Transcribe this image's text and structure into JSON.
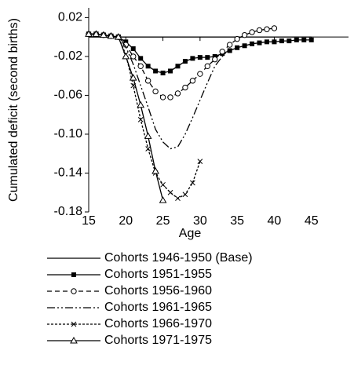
{
  "chart_data": {
    "type": "line",
    "xlabel": "Age",
    "ylabel": "Cumulated deficit (second births)",
    "x": [
      15,
      16,
      17,
      18,
      19,
      20,
      21,
      22,
      23,
      24,
      25,
      26,
      27,
      28,
      29,
      30,
      31,
      32,
      33,
      34,
      35,
      36,
      37,
      38,
      39,
      40,
      41,
      42,
      43,
      44,
      45
    ],
    "xlim": [
      15,
      50
    ],
    "xticks": [
      15,
      20,
      25,
      30,
      35,
      40,
      45
    ],
    "ylim": [
      -0.18,
      0.03
    ],
    "yticks": [
      0.02,
      -0.02,
      -0.06,
      {
        "value": -0.1,
        "label": "-0.10"
      },
      -0.14,
      -0.18
    ],
    "series": [
      {
        "name": "Cohorts 1946-1950 (Base)",
        "color": "#000000",
        "marker": "none",
        "dash": "none",
        "values": [
          0,
          0,
          0,
          0,
          0,
          0,
          0,
          0,
          0,
          0,
          0,
          0,
          0,
          0,
          0,
          0,
          0,
          0,
          0,
          0,
          0,
          0,
          0,
          0,
          0,
          0,
          0,
          0,
          0,
          0,
          0
        ]
      },
      {
        "name": "Cohorts 1951-1955",
        "color": "#000000",
        "marker": "square",
        "dash": "none",
        "values": [
          0.003,
          0.003,
          0.002,
          0.001,
          0,
          -0.005,
          -0.012,
          -0.022,
          -0.03,
          -0.035,
          -0.037,
          -0.035,
          -0.03,
          -0.025,
          -0.022,
          -0.021,
          -0.021,
          -0.02,
          -0.017,
          -0.014,
          -0.011,
          -0.009,
          -0.007,
          -0.006,
          -0.005,
          -0.005,
          -0.004,
          -0.004,
          -0.003,
          -0.003,
          -0.003
        ]
      },
      {
        "name": "Cohorts 1956-1960",
        "color": "#000000",
        "marker": "circle",
        "dash": "6,4",
        "values": [
          0.003,
          0.003,
          0.002,
          0.001,
          0,
          -0.008,
          -0.02,
          -0.03,
          -0.045,
          -0.056,
          -0.062,
          -0.062,
          -0.058,
          -0.052,
          -0.045,
          -0.038,
          -0.03,
          -0.023,
          -0.015,
          -0.008,
          -0.002,
          0.002,
          0.005,
          0.007,
          0.008,
          0.009,
          null,
          null,
          null,
          null,
          null
        ]
      },
      {
        "name": "Cohorts 1961-1965",
        "color": "#000000",
        "marker": "none",
        "dash": "10,3,2,3,2,3",
        "values": [
          0.003,
          0.003,
          0.002,
          0.001,
          0,
          -0.01,
          -0.028,
          -0.05,
          -0.072,
          -0.095,
          -0.108,
          -0.115,
          -0.113,
          -0.1,
          -0.083,
          -0.065,
          -0.047,
          -0.03,
          -0.02,
          -0.012,
          null,
          null,
          null,
          null,
          null,
          null,
          null,
          null,
          null,
          null,
          null
        ]
      },
      {
        "name": "Cohorts 1966-1970",
        "color": "#000000",
        "marker": "x",
        "dash": "3,2",
        "values": [
          0.003,
          0.003,
          0.002,
          0.001,
          0,
          -0.018,
          -0.05,
          -0.085,
          -0.115,
          -0.14,
          -0.152,
          -0.16,
          -0.166,
          -0.162,
          -0.15,
          -0.128,
          null,
          null,
          null,
          null,
          null,
          null,
          null,
          null,
          null,
          null,
          null,
          null,
          null,
          null,
          null
        ]
      },
      {
        "name": "Cohorts 1971-1975",
        "color": "#000000",
        "marker": "triangle",
        "dash": "none",
        "values": [
          0.003,
          0.003,
          0.002,
          0.001,
          0,
          -0.02,
          -0.042,
          -0.07,
          -0.102,
          -0.138,
          -0.168,
          null,
          null,
          null,
          null,
          null,
          null,
          null,
          null,
          null,
          null,
          null,
          null,
          null,
          null,
          null,
          null,
          null,
          null,
          null,
          null
        ]
      }
    ]
  }
}
